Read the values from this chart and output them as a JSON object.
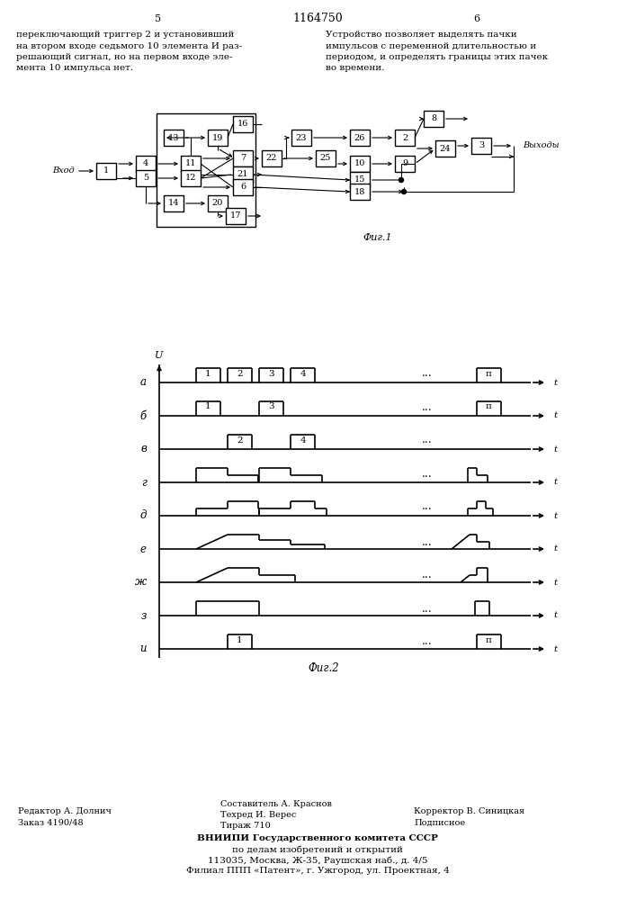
{
  "page_title": "1164750",
  "page_left_num": "5",
  "page_right_num": "6",
  "text_left": "переключающий триггер 2 и установивший\nна втором входе седьмого 10 элемента И раз-\nрешающий сигнал, но на первом входе эле-\nмента 10 импульса нет.",
  "text_right": "Устройство позволяет выделять пачки\nимпульсов с переменной длительностью и\nпериодом, и определять границы этих пачек\nво времени.",
  "fig1_caption": "Фиг.1",
  "fig2_caption": "Фиг.2",
  "footer_left1": "Редактор А. Долнич",
  "footer_left2": "Заказ 4190/48",
  "footer_center1": "Составитель А. Краснов",
  "footer_center2": "Техред И. Верес",
  "footer_center3": "Тираж 710",
  "footer_right1": "Корректор В. Синицкая",
  "footer_right2": "Подписное",
  "footer_vnipi1": "ВНИИПИ Государственного комитета СССР",
  "footer_vnipi2": "по делам изобретений и открытий",
  "footer_vnipi3": "113035, Москва, Ж-35, Раушская наб., д. 4/5",
  "footer_vnipi4": "Филиал ППП «Патент», г. Ужгород, ул. Проектная, 4",
  "bg_color": "#ffffff",
  "line_color": "#000000",
  "signal_labels_fig2": [
    "а",
    "б",
    "в",
    "г",
    "д",
    "е",
    "ж",
    "з",
    "и"
  ]
}
